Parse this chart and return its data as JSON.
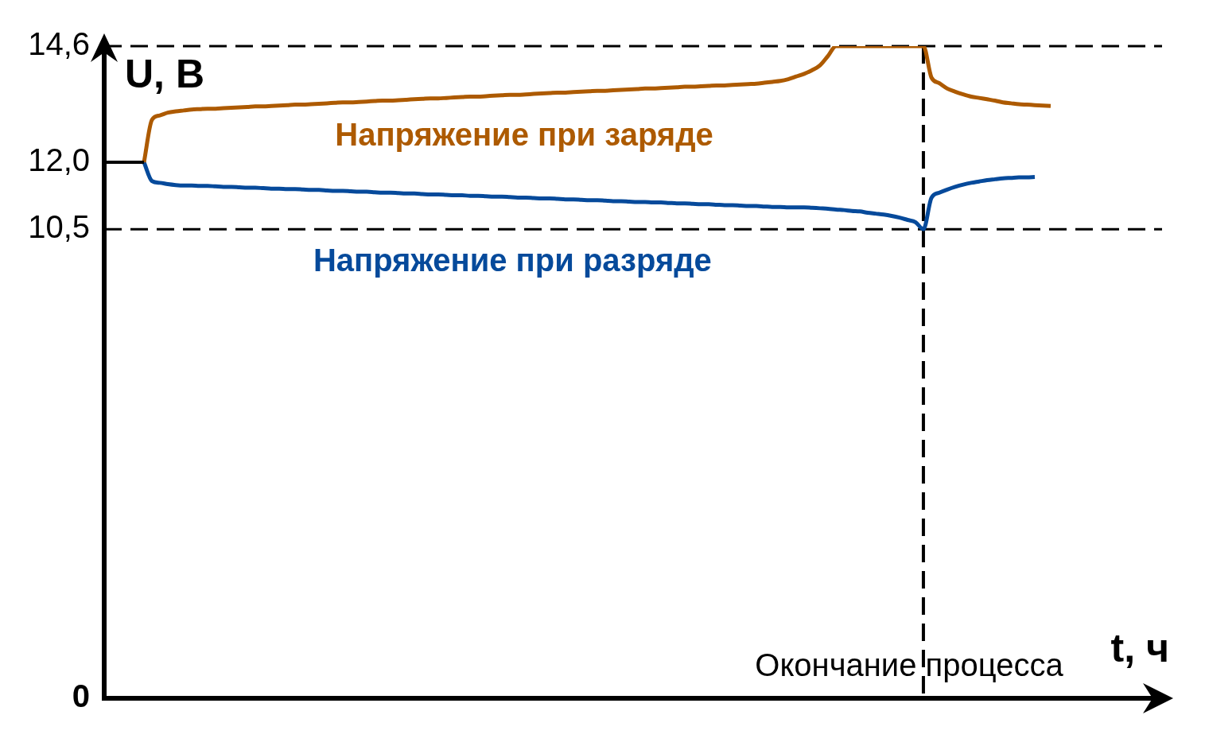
{
  "chart_data": {
    "type": "line",
    "xlabel": "t, ч",
    "ylabel": "U, В",
    "categories": [
      null,
      null,
      null,
      null,
      null,
      null,
      null,
      null,
      null,
      null,
      null,
      null,
      null,
      null,
      null,
      null,
      null,
      null,
      null,
      null,
      null,
      null,
      null,
      null,
      null,
      null,
      null,
      null,
      null,
      null,
      null,
      null,
      null,
      null,
      null,
      null,
      null,
      null,
      null,
      null,
      null,
      null,
      null,
      null,
      null,
      null,
      null,
      null,
      null,
      null,
      null,
      null,
      null,
      null,
      null,
      null,
      null,
      null,
      null,
      null,
      null,
      null,
      null,
      null,
      null,
      null,
      null,
      null,
      null,
      null,
      null,
      null,
      null,
      null,
      null,
      null,
      null,
      null,
      null,
      null,
      null,
      null,
      null,
      null,
      null,
      null,
      null,
      null,
      null,
      null,
      null,
      null,
      null,
      null,
      null,
      null,
      null,
      null,
      null,
      null,
      null,
      null,
      null,
      null,
      null,
      null,
      null,
      null,
      null,
      null,
      null,
      null,
      null,
      null,
      null,
      null,
      null,
      null,
      null,
      null,
      null,
      null,
      null,
      null,
      null,
      null,
      null,
      null,
      null,
      null,
      null,
      null,
      null,
      null
    ],
    "series": [
      {
        "name": "Напряжение при заряде",
        "color": "#ad5a00",
        "values": [
          null,
          null,
          null,
          null,
          null,
          12,
          12.95,
          13.05,
          13.11,
          13.14,
          13.16,
          13.18,
          13.19,
          13.2,
          13.2,
          13.21,
          13.22,
          13.23,
          13.24,
          13.25,
          13.25,
          13.26,
          13.27,
          13.28,
          13.29,
          13.29,
          13.3,
          13.31,
          13.32,
          13.33,
          13.34,
          13.34,
          13.35,
          13.36,
          13.37,
          13.38,
          13.38,
          13.39,
          13.4,
          13.41,
          13.42,
          13.43,
          13.43,
          13.44,
          13.45,
          13.46,
          13.47,
          13.47,
          13.48,
          13.49,
          13.5,
          13.51,
          13.51,
          13.52,
          13.53,
          13.54,
          13.55,
          13.56,
          13.56,
          13.57,
          13.58,
          13.59,
          13.6,
          13.6,
          13.61,
          13.62,
          13.63,
          13.64,
          13.65,
          13.65,
          13.66,
          13.67,
          13.68,
          13.69,
          13.69,
          13.7,
          13.71,
          13.72,
          13.72,
          13.73,
          13.74,
          13.75,
          13.76,
          13.78,
          13.8,
          13.82,
          13.86,
          13.92,
          13.98,
          14.06,
          14.17,
          14.38,
          14.6,
          14.6,
          14.6,
          14.6,
          14.6,
          14.6,
          14.6,
          14.6,
          14.6,
          14.6,
          14.6,
          14.6,
          13.9,
          13.77,
          13.65,
          13.58,
          13.52,
          13.47,
          13.44,
          13.41,
          13.38,
          13.34,
          13.32,
          13.3,
          13.29,
          13.28,
          13.27,
          13.26,
          null,
          null,
          null,
          null,
          null,
          null,
          null,
          null,
          null,
          null,
          null,
          null,
          null,
          null
        ]
      },
      {
        "name": "Напряжение при разряде",
        "color": "#064a9b",
        "values": [
          null,
          null,
          null,
          null,
          null,
          12,
          11.58,
          11.54,
          11.51,
          11.49,
          11.48,
          11.48,
          11.47,
          11.47,
          11.46,
          11.45,
          11.45,
          11.44,
          11.43,
          11.43,
          11.42,
          11.41,
          11.41,
          11.4,
          11.4,
          11.39,
          11.38,
          11.38,
          11.37,
          11.36,
          11.36,
          11.35,
          11.34,
          11.34,
          11.33,
          11.32,
          11.32,
          11.31,
          11.3,
          11.3,
          11.29,
          11.28,
          11.28,
          11.27,
          11.26,
          11.26,
          11.25,
          11.25,
          11.24,
          11.23,
          11.23,
          11.22,
          11.21,
          11.21,
          11.2,
          11.19,
          11.19,
          11.18,
          11.17,
          11.17,
          11.16,
          11.15,
          11.15,
          11.14,
          11.13,
          11.13,
          11.12,
          11.11,
          11.11,
          11.1,
          11.1,
          11.09,
          11.08,
          11.08,
          11.07,
          11.06,
          11.06,
          11.05,
          11.04,
          11.04,
          11.03,
          11.02,
          11.02,
          11.01,
          11.0,
          11.0,
          10.99,
          10.99,
          10.99,
          10.98,
          10.97,
          10.96,
          10.94,
          10.93,
          10.91,
          10.9,
          10.87,
          10.85,
          10.83,
          10.8,
          10.76,
          10.71,
          10.66,
          10.5,
          11.2,
          11.32,
          11.39,
          11.45,
          11.5,
          11.54,
          11.57,
          11.6,
          11.62,
          11.64,
          11.65,
          11.66,
          11.66,
          11.67,
          null,
          null,
          null,
          null,
          null,
          null,
          null,
          null,
          null,
          null,
          null,
          null,
          null,
          null,
          null,
          null
        ]
      }
    ],
    "ylim": [
      0,
      14.6
    ],
    "yticks": [
      0,
      {
        "value": 10.5,
        "label": "10,5"
      },
      {
        "value": 12,
        "label": "12,0"
      },
      {
        "value": 14.6,
        "label": "14,6"
      }
    ],
    "ref_lines": [
      {
        "axis": "y",
        "value": 14.6,
        "line_style": "dashed",
        "color": "#000000"
      },
      {
        "axis": "y",
        "value": 10.5,
        "line_style": "dashed",
        "color": "#000000"
      }
    ],
    "annotations": [
      "Окончание процесса"
    ],
    "tick_labels": "y",
    "marker": "none",
    "line_style": "solid"
  }
}
